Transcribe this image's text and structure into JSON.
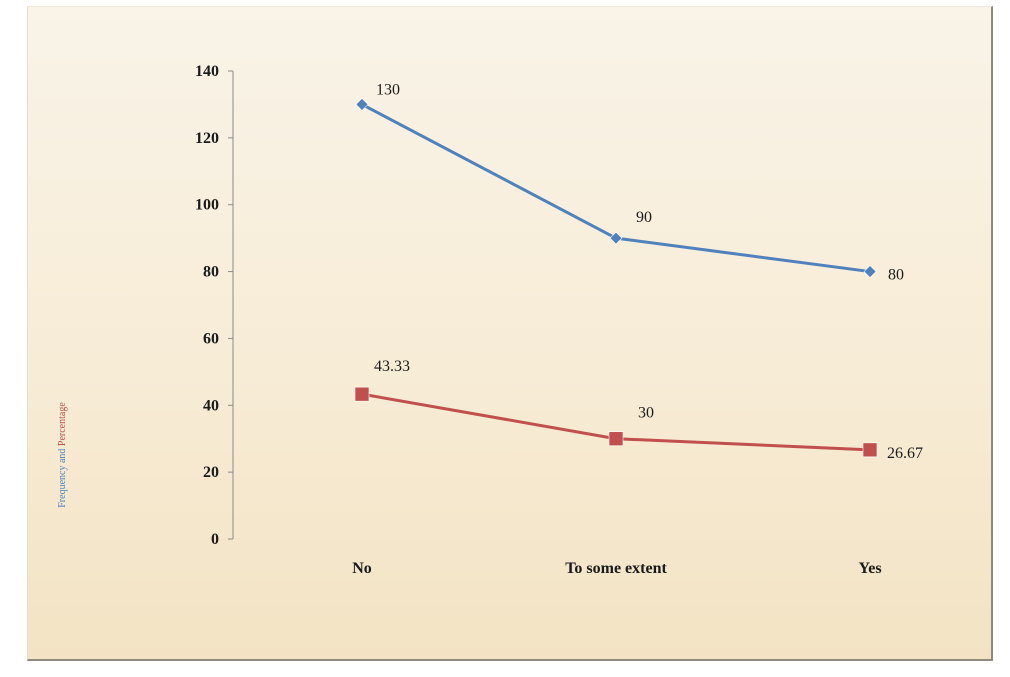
{
  "chart_data": {
    "type": "line",
    "categories": [
      "No",
      "To some extent",
      "Yes"
    ],
    "series": [
      {
        "values": [
          130,
          90,
          80
        ],
        "labels": [
          "130",
          "90",
          "80"
        ],
        "color": "#4f81bd",
        "marker": "diamond"
      },
      {
        "values": [
          43.33,
          30,
          26.67
        ],
        "labels": [
          "43.33",
          "30",
          "26.67"
        ],
        "color": "#c0504d",
        "marker": "square"
      }
    ],
    "ylabel_parts": [
      {
        "text": "Frequency and ",
        "color": "#4f81bd"
      },
      {
        "text": "Percentage",
        "color": "#c0504d"
      }
    ],
    "ylim": [
      0,
      140
    ],
    "yticks": [
      0,
      20,
      40,
      60,
      80,
      100,
      120,
      140
    ],
    "grid": false,
    "legend": "none"
  }
}
